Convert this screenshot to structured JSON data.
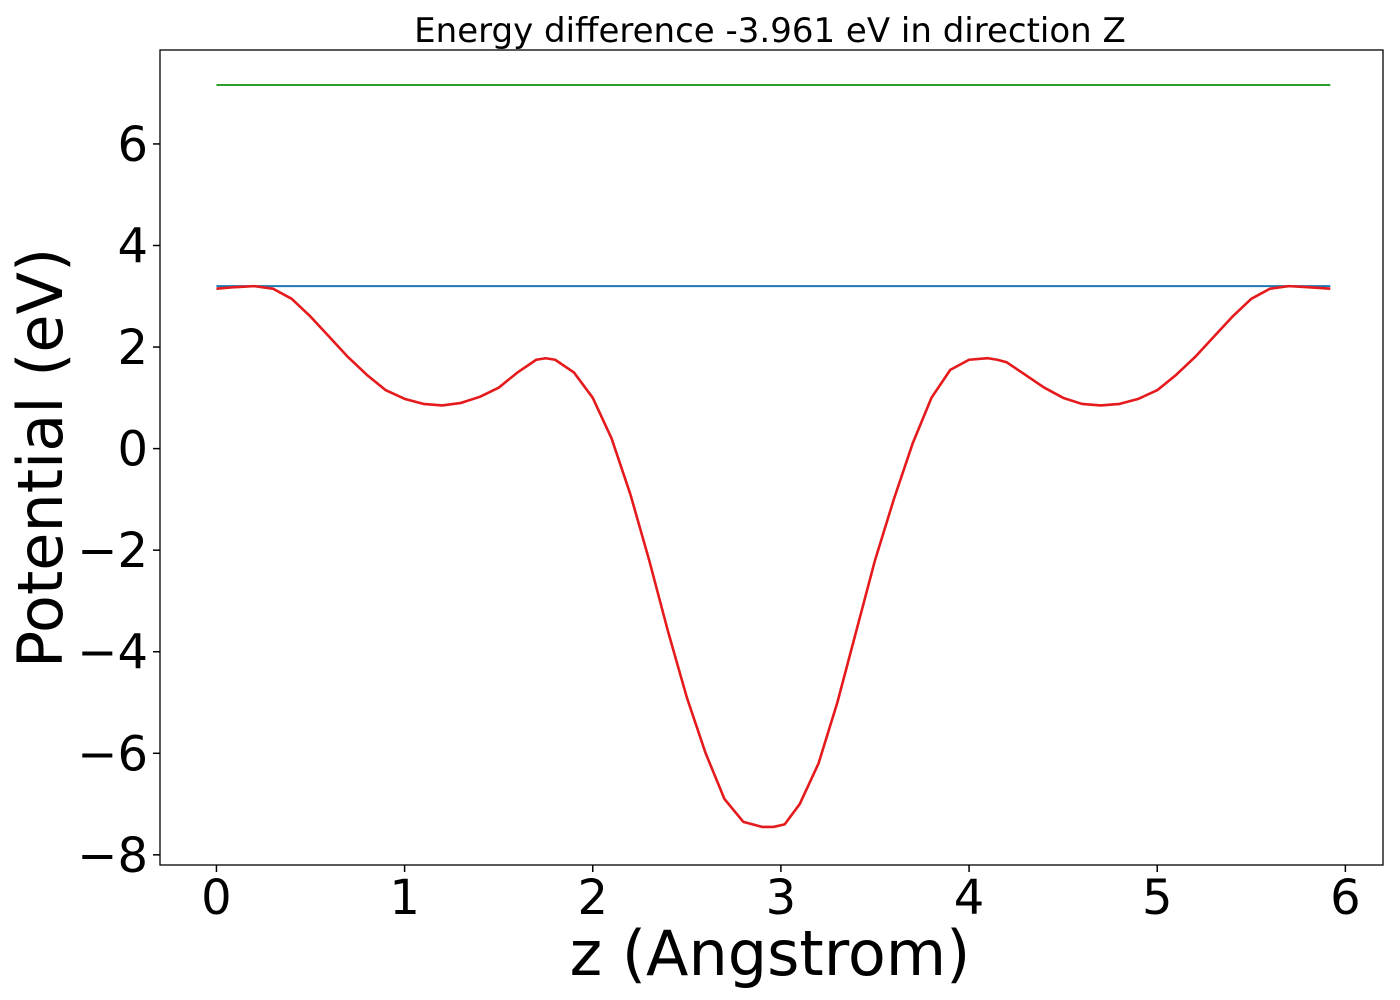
{
  "chart_data": {
    "type": "line",
    "title": "Energy difference -3.961 eV in direction Z",
    "xlabel": "z (Angstrom)",
    "ylabel": "Potential (eV)",
    "xlim": [
      -0.3,
      6.2
    ],
    "ylim": [
      -8.2,
      7.85
    ],
    "xticks": [
      0,
      1,
      2,
      3,
      4,
      5,
      6
    ],
    "xtick_labels": [
      "0",
      "1",
      "2",
      "3",
      "4",
      "5",
      "6"
    ],
    "yticks": [
      -8,
      -6,
      -4,
      -2,
      0,
      2,
      4,
      6
    ],
    "ytick_labels": [
      "−8",
      "−6",
      "−4",
      "−2",
      "0",
      "2",
      "4",
      "6"
    ],
    "grid": false,
    "legend": "none",
    "series": [
      {
        "color": "#2ca02c",
        "x": [
          0,
          5.92
        ],
        "y": [
          7.16,
          7.16
        ]
      },
      {
        "color": "#1f77b4",
        "x": [
          0,
          5.92
        ],
        "y": [
          3.2,
          3.2
        ]
      },
      {
        "color": "#e41a1c",
        "x": [
          0,
          0.1,
          0.2,
          0.3,
          0.4,
          0.5,
          0.6,
          0.7,
          0.8,
          0.9,
          1.0,
          1.1,
          1.2,
          1.3,
          1.4,
          1.5,
          1.6,
          1.7,
          1.75,
          1.8,
          1.9,
          2.0,
          2.1,
          2.2,
          2.3,
          2.4,
          2.5,
          2.6,
          2.7,
          2.8,
          2.9,
          2.96,
          3.02,
          3.1,
          3.2,
          3.3,
          3.4,
          3.5,
          3.6,
          3.7,
          3.8,
          3.9,
          4.0,
          4.1,
          4.15,
          4.2,
          4.3,
          4.4,
          4.5,
          4.6,
          4.7,
          4.8,
          4.9,
          5.0,
          5.1,
          5.2,
          5.3,
          5.4,
          5.5,
          5.6,
          5.7,
          5.8,
          5.92
        ],
        "y": [
          3.15,
          3.18,
          3.2,
          3.15,
          2.95,
          2.6,
          2.2,
          1.8,
          1.45,
          1.15,
          0.98,
          0.88,
          0.85,
          0.9,
          1.02,
          1.2,
          1.5,
          1.75,
          1.78,
          1.75,
          1.5,
          1.0,
          0.2,
          -0.9,
          -2.2,
          -3.6,
          -4.9,
          -6.0,
          -6.9,
          -7.35,
          -7.45,
          -7.45,
          -7.4,
          -7.0,
          -6.2,
          -5.0,
          -3.6,
          -2.2,
          -1.0,
          0.1,
          1.0,
          1.55,
          1.75,
          1.78,
          1.75,
          1.7,
          1.45,
          1.2,
          1.0,
          0.88,
          0.85,
          0.88,
          0.98,
          1.15,
          1.45,
          1.8,
          2.2,
          2.6,
          2.95,
          3.15,
          3.2,
          3.18,
          3.15
        ]
      }
    ]
  }
}
